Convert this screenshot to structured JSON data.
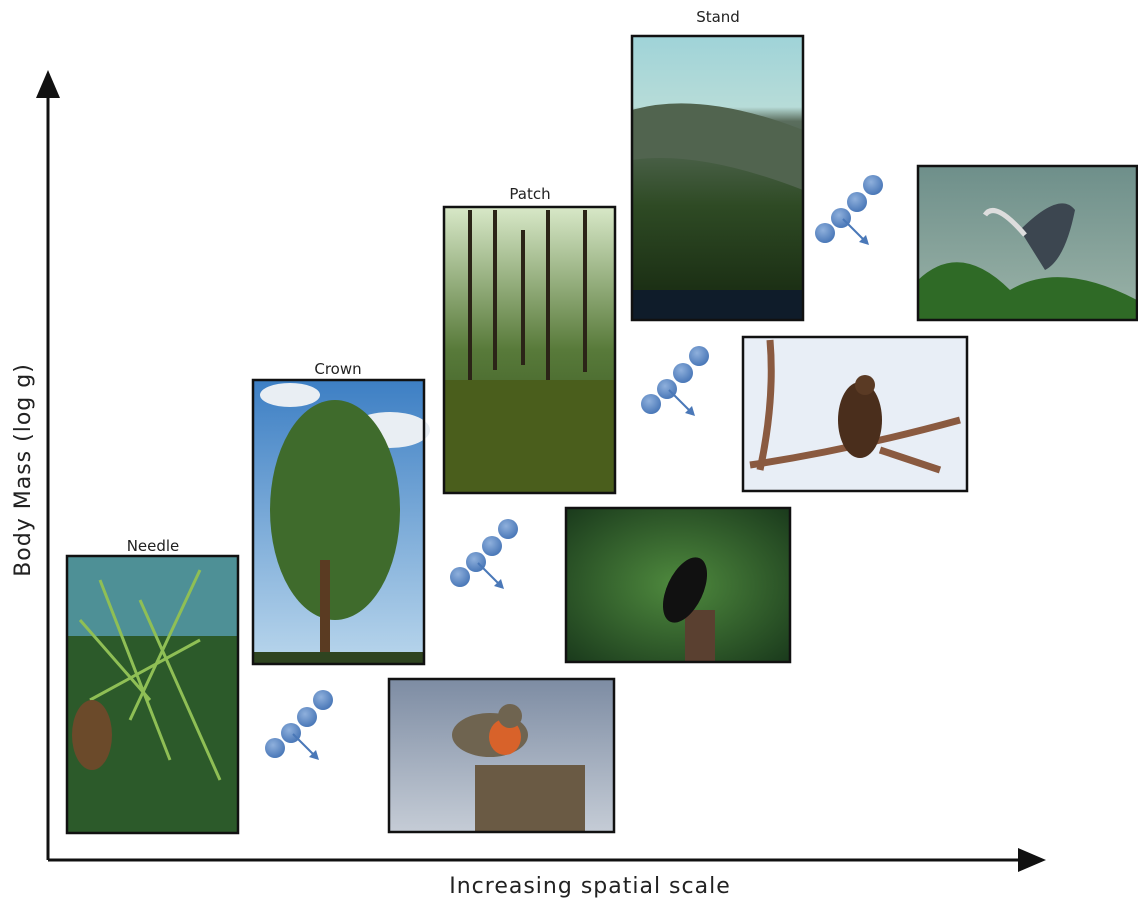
{
  "axes": {
    "y_label": "Body Mass (log g)",
    "x_label": "Increasing spatial scale"
  },
  "scales": [
    {
      "label": "Needle"
    },
    {
      "label": "Crown"
    },
    {
      "label": "Patch"
    },
    {
      "label": "Stand"
    }
  ]
}
